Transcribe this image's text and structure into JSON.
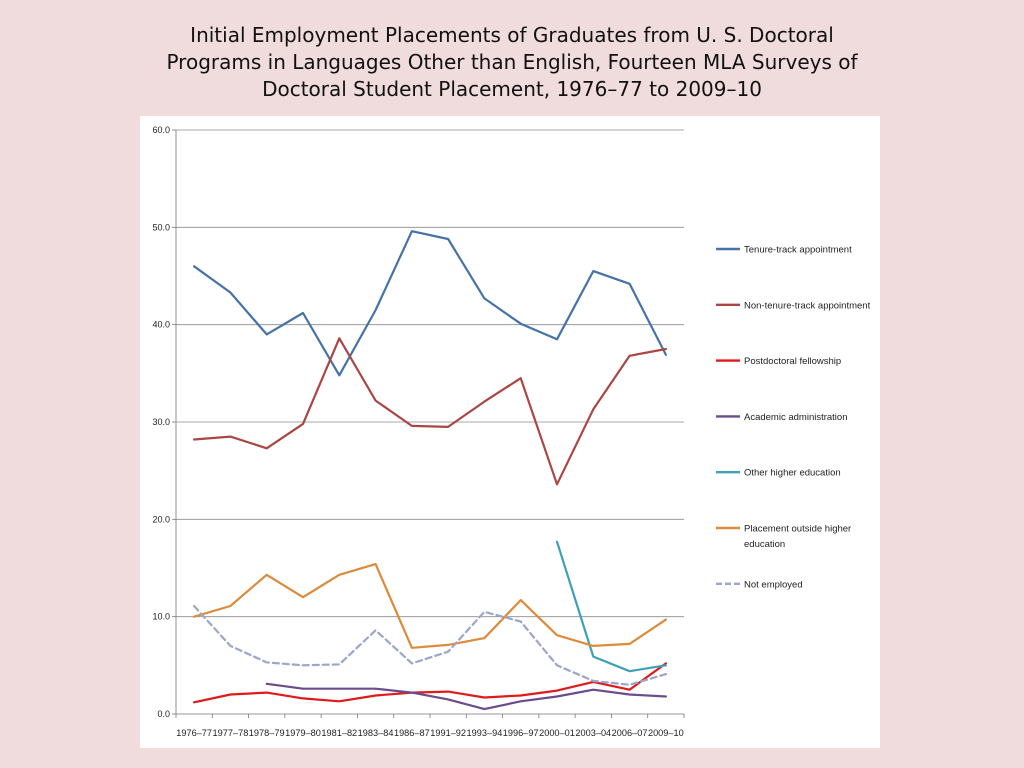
{
  "title_lines": [
    "Initial Employment Placements of Graduates from U. S. Doctoral",
    "Programs in Languages Other than English,  Fourteen MLA Surveys of",
    "Doctoral Student Placement, 1976–77 to 2009–10"
  ],
  "chart_data": {
    "type": "line",
    "title": "Initial Employment Placements of Graduates from U. S. Doctoral Programs in Languages Other than English,  Fourteen MLA Surveys of Doctoral Student Placement, 1976–77 to 2009–10",
    "xlabel": "",
    "ylabel": "",
    "ylim": [
      0,
      60
    ],
    "yticks": [
      "0.0",
      "10.0",
      "20.0",
      "30.0",
      "40.0",
      "50.0",
      "60.0"
    ],
    "grid": true,
    "legend_position": "right",
    "categories": [
      "1976–77",
      "1977–78",
      "1978–79",
      "1979–80",
      "1981–82",
      "1983–84",
      "1986–87",
      "1991–92",
      "1993–94",
      "1996–97",
      "2000–01",
      "2003–04",
      "2006–07",
      "2009–10"
    ],
    "series": [
      {
        "name": "Tenure-track appointment",
        "color": "#4572a7",
        "dash": false,
        "values": [
          46.0,
          43.3,
          39.0,
          41.2,
          34.8,
          41.5,
          49.6,
          48.8,
          42.7,
          40.1,
          38.5,
          45.5,
          44.2,
          36.9
        ]
      },
      {
        "name": "Non-tenure-track appointment",
        "color": "#aa4643",
        "dash": false,
        "values": [
          28.2,
          28.5,
          27.3,
          29.8,
          38.6,
          32.2,
          29.6,
          29.5,
          32.1,
          34.5,
          23.6,
          31.3,
          36.8,
          37.5
        ]
      },
      {
        "name": "Postdoctoral fellowship",
        "color": "#e01a1a",
        "dash": false,
        "values": [
          1.2,
          2.0,
          2.2,
          1.6,
          1.3,
          1.9,
          2.2,
          2.3,
          1.7,
          1.9,
          2.4,
          3.3,
          2.5,
          5.2
        ]
      },
      {
        "name": "Academic administration",
        "color": "#6a4c8c",
        "dash": false,
        "values": [
          null,
          null,
          3.1,
          2.6,
          2.6,
          2.6,
          2.2,
          1.5,
          0.5,
          1.3,
          1.8,
          2.5,
          2.0,
          1.8
        ]
      },
      {
        "name": "Other higher education",
        "color": "#3ea0b8",
        "dash": false,
        "values": [
          null,
          null,
          null,
          null,
          null,
          null,
          null,
          null,
          null,
          null,
          17.7,
          5.9,
          4.4,
          5.0
        ]
      },
      {
        "name": "Placement outside higher education",
        "color": "#db8b3a",
        "dash": false,
        "values": [
          10.0,
          11.1,
          14.3,
          12.0,
          14.3,
          15.4,
          6.8,
          7.1,
          7.8,
          11.7,
          8.1,
          7.0,
          7.2,
          9.7
        ]
      },
      {
        "name": "Not employed",
        "color": "#9aa6cc",
        "dash": true,
        "values": [
          11.1,
          7.0,
          5.3,
          5.0,
          5.1,
          8.6,
          5.2,
          6.4,
          10.5,
          9.5,
          5.0,
          3.4,
          3.0,
          4.1
        ]
      }
    ]
  }
}
